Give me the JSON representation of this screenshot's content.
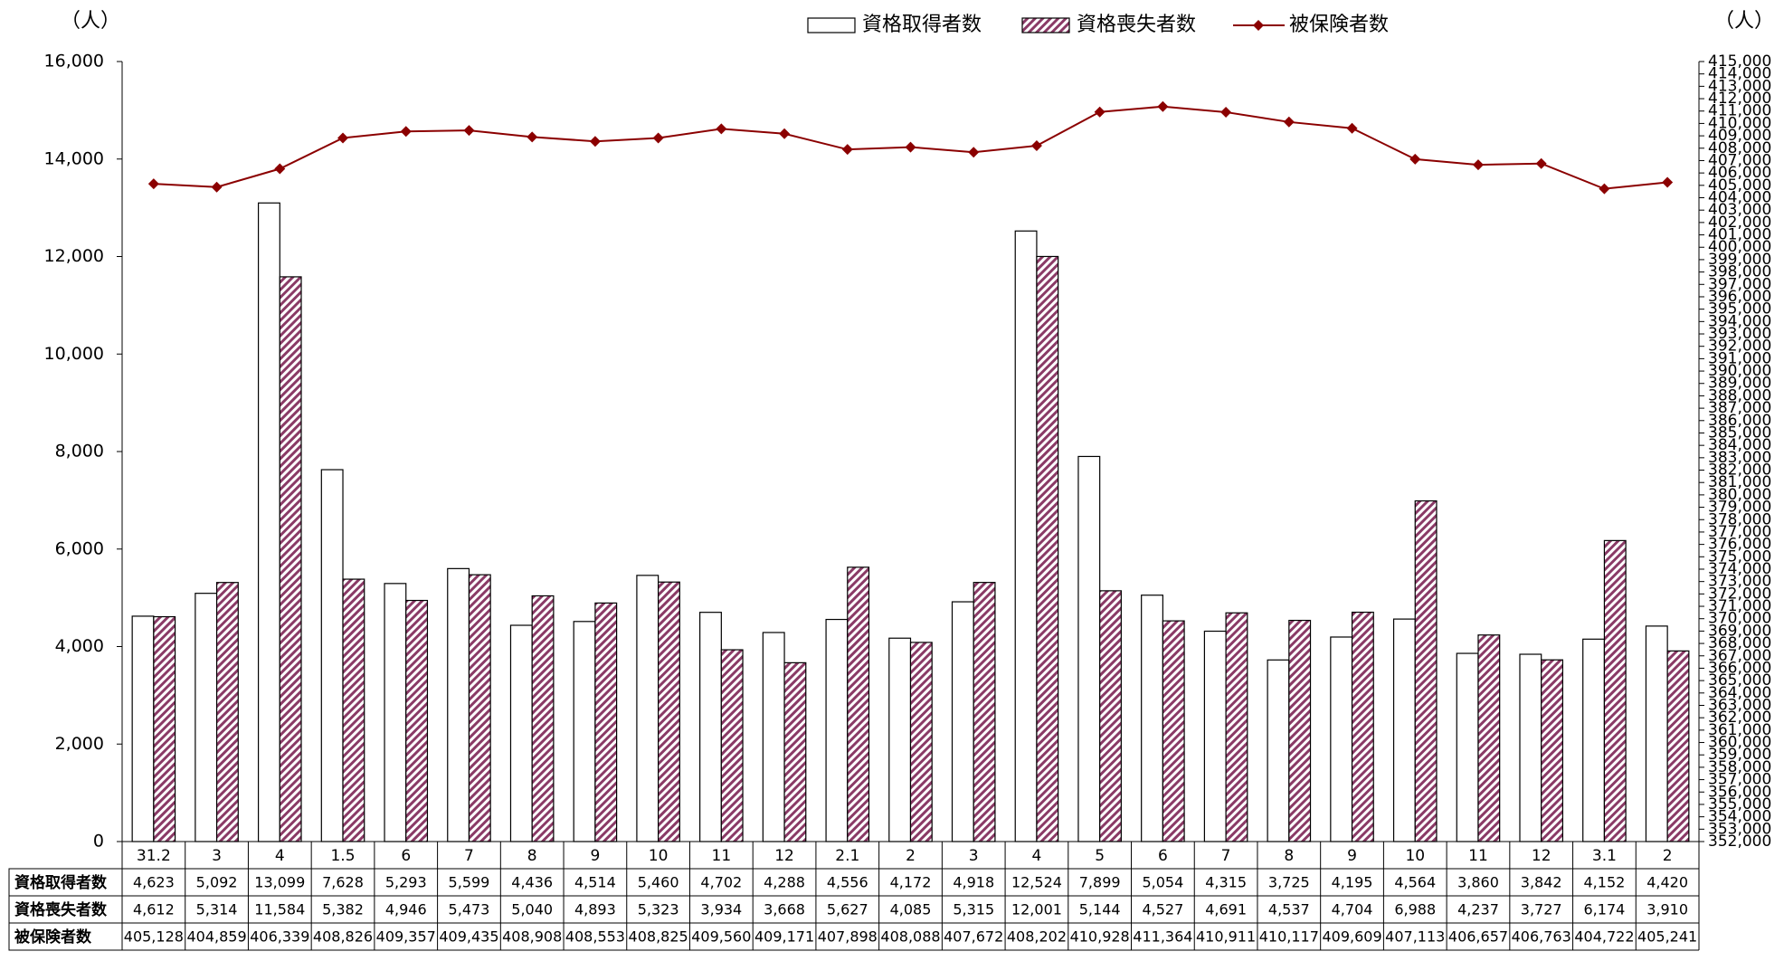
{
  "chart_data": {
    "type": "bar",
    "left_unit": "（人）",
    "right_unit": "（人）",
    "categories": [
      "31.2",
      "3",
      "4",
      "1.5",
      "6",
      "7",
      "8",
      "9",
      "10",
      "11",
      "12",
      "2.1",
      "2",
      "3",
      "4",
      "5",
      "6",
      "7",
      "8",
      "9",
      "10",
      "11",
      "12",
      "3.1",
      "2"
    ],
    "series": [
      {
        "name": "資格取得者数",
        "kind": "bar",
        "axis": "left",
        "fill": "#ffffff",
        "values": [
          4623,
          5092,
          13099,
          7628,
          5293,
          5599,
          4436,
          4514,
          5460,
          4702,
          4288,
          4556,
          4172,
          4918,
          12524,
          7899,
          5054,
          4315,
          3725,
          4195,
          4564,
          3860,
          3842,
          4152,
          4420
        ]
      },
      {
        "name": "資格喪失者数",
        "kind": "bar",
        "axis": "left",
        "fill": "hatch",
        "values": [
          4612,
          5314,
          11584,
          5382,
          4946,
          5473,
          5040,
          4893,
          5323,
          3934,
          3668,
          5627,
          4085,
          5315,
          12001,
          5144,
          4527,
          4691,
          4537,
          4704,
          6988,
          4237,
          3727,
          6174,
          3910
        ]
      },
      {
        "name": "被保険者数",
        "kind": "line",
        "axis": "right",
        "color": "#8b0000",
        "values": [
          405128,
          404859,
          406339,
          408826,
          409357,
          409435,
          408908,
          408553,
          408825,
          409560,
          409171,
          407898,
          408088,
          407672,
          408202,
          410928,
          411364,
          410911,
          410117,
          409609,
          407113,
          406657,
          406763,
          404722,
          405241
        ]
      }
    ],
    "y_left": {
      "min": 0,
      "max": 16000,
      "step": 2000,
      "ticks": [
        "0",
        "2,000",
        "4,000",
        "6,000",
        "8,000",
        "10,000",
        "12,000",
        "14,000",
        "16,000"
      ]
    },
    "y_right": {
      "min": 352000,
      "max": 415000,
      "step": 1000
    },
    "table": {
      "rows": [
        {
          "label": "資格取得者数",
          "cells": [
            "4,623",
            "5,092",
            "13,099",
            "7,628",
            "5,293",
            "5,599",
            "4,436",
            "4,514",
            "5,460",
            "4,702",
            "4,288",
            "4,556",
            "4,172",
            "4,918",
            "12,524",
            "7,899",
            "5,054",
            "4,315",
            "3,725",
            "4,195",
            "4,564",
            "3,860",
            "3,842",
            "4,152",
            "4,420"
          ]
        },
        {
          "label": "資格喪失者数",
          "cells": [
            "4,612",
            "5,314",
            "11,584",
            "5,382",
            "4,946",
            "5,473",
            "5,040",
            "4,893",
            "5,323",
            "3,934",
            "3,668",
            "5,627",
            "4,085",
            "5,315",
            "12,001",
            "5,144",
            "4,527",
            "4,691",
            "4,537",
            "4,704",
            "6,988",
            "4,237",
            "3,727",
            "6,174",
            "3,910"
          ]
        },
        {
          "label": "被保険者数",
          "cells": [
            "405,128",
            "404,859",
            "406,339",
            "408,826",
            "409,357",
            "409,435",
            "408,908",
            "408,553",
            "408,825",
            "409,560",
            "409,171",
            "407,898",
            "408,088",
            "407,672",
            "408,202",
            "410,928",
            "411,364",
            "410,911",
            "410,117",
            "409,609",
            "407,113",
            "406,657",
            "406,763",
            "404,722",
            "405,241"
          ]
        }
      ]
    },
    "legend": {
      "position": "top",
      "items": [
        "資格取得者数",
        "資格喪失者数",
        "被保険者数"
      ]
    },
    "grid": false
  }
}
